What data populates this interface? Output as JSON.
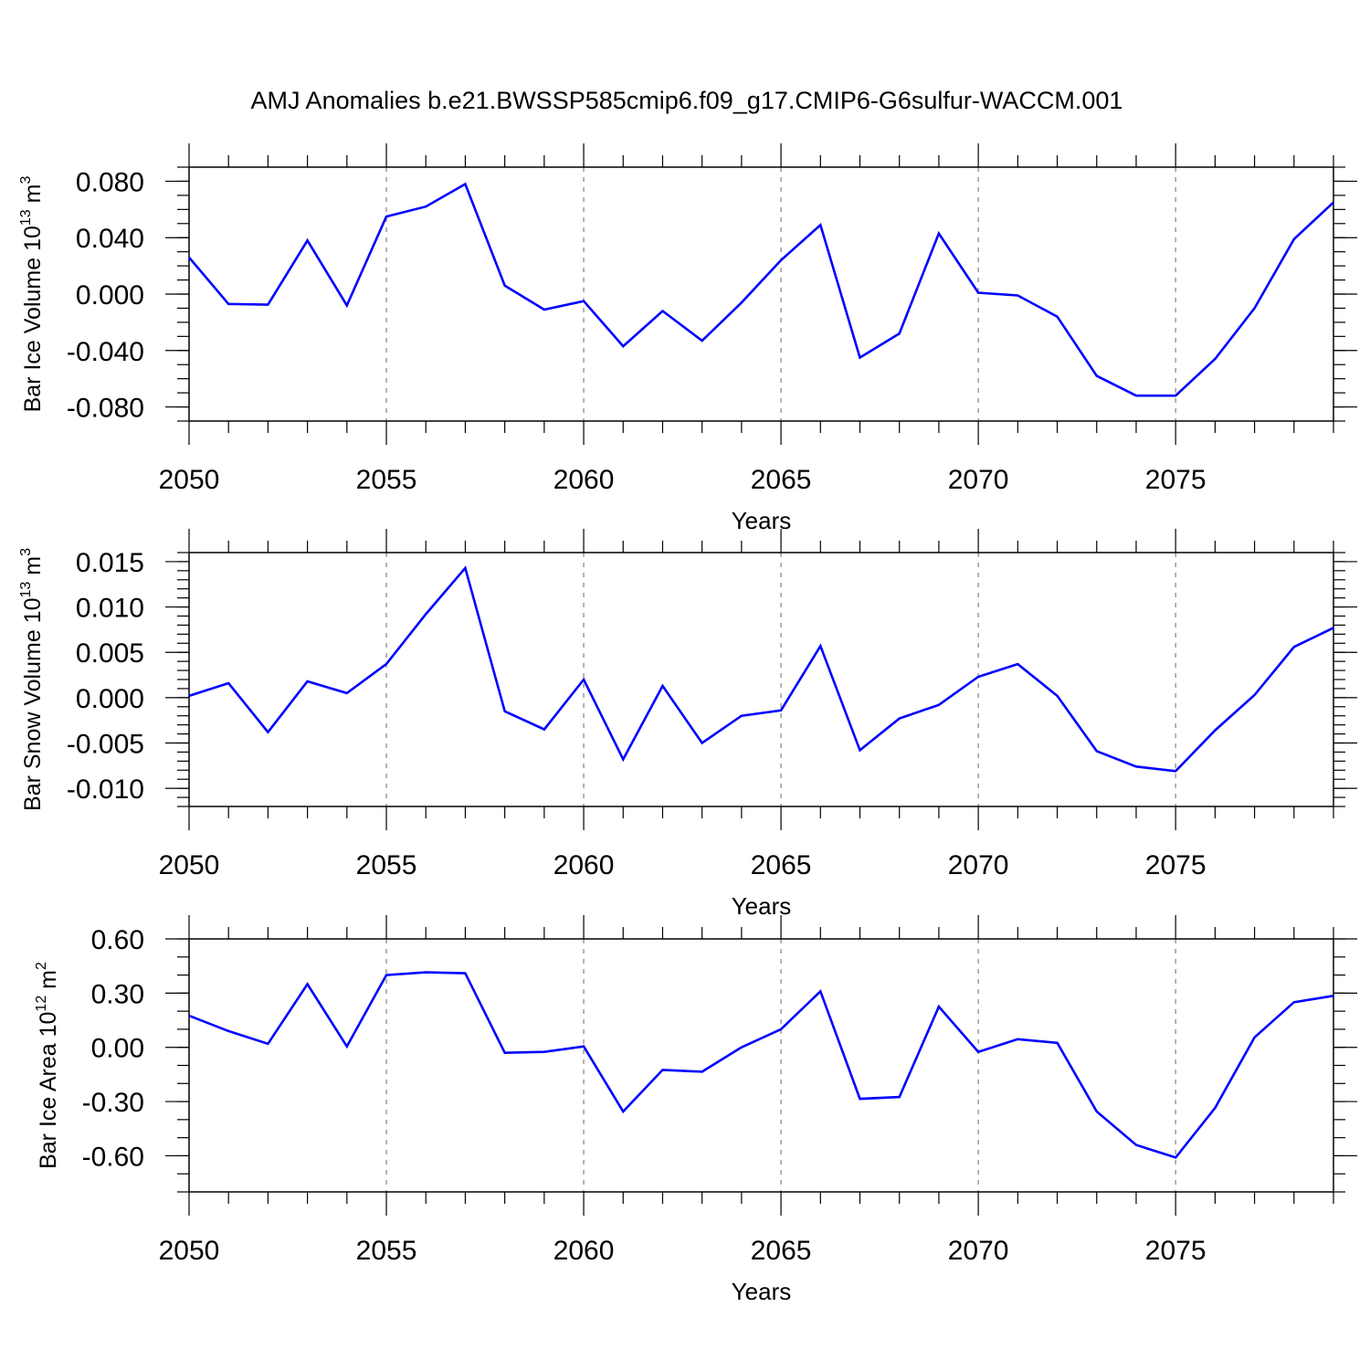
{
  "figure": {
    "title": "AMJ Anomalies b.e21.BWSSP585cmip6.f09_g17.CMIP6-G6sulfur-WACCM.001"
  },
  "colors": {
    "line": "#0000ff",
    "grid": "#8c8c8c",
    "axes": "#000000"
  },
  "chart_data": [
    {
      "type": "line",
      "ylabel": {
        "main": "Bar Ice Volume 10",
        "sup": "13",
        "tail": " m",
        "sup2": "3"
      },
      "xlabel": "Years",
      "xlim": [
        2050,
        2079
      ],
      "ylim": [
        -0.09,
        0.09
      ],
      "xticks": [
        2050,
        2055,
        2060,
        2065,
        2070,
        2075
      ],
      "xtick_labels": [
        "2050",
        "2055",
        "2060",
        "2065",
        "2070",
        "2075"
      ],
      "yticks": [
        -0.08,
        -0.04,
        0.0,
        0.04,
        0.08
      ],
      "ytick_labels": [
        "-0.080",
        "-0.040",
        "0.000",
        "0.040",
        "0.080"
      ],
      "yminor_step": 0.01,
      "grid": "vertical dashed at major x ticks",
      "series": [
        {
          "x": [
            2050,
            2051,
            2052,
            2053,
            2054,
            2055,
            2056,
            2057,
            2058,
            2059,
            2060,
            2061,
            2062,
            2063,
            2064,
            2065,
            2066,
            2067,
            2068,
            2069,
            2070,
            2071,
            2072,
            2073,
            2074,
            2075,
            2076,
            2077,
            2078,
            2079
          ],
          "values": [
            0.026,
            -0.007,
            -0.0075,
            0.038,
            -0.008,
            0.055,
            0.062,
            0.078,
            0.006,
            -0.011,
            -0.005,
            -0.037,
            -0.012,
            -0.033,
            -0.006,
            0.024,
            0.049,
            -0.045,
            -0.028,
            0.043,
            0.001,
            -0.001,
            -0.016,
            -0.058,
            -0.072,
            -0.072,
            -0.046,
            -0.01,
            0.039,
            0.065
          ]
        }
      ]
    },
    {
      "type": "line",
      "ylabel": {
        "main": "Bar Snow Volume 10",
        "sup": "13",
        "tail": " m",
        "sup2": "3"
      },
      "xlabel": "Years",
      "xlim": [
        2050,
        2079
      ],
      "ylim": [
        -0.012,
        0.016
      ],
      "xticks": [
        2050,
        2055,
        2060,
        2065,
        2070,
        2075
      ],
      "xtick_labels": [
        "2050",
        "2055",
        "2060",
        "2065",
        "2070",
        "2075"
      ],
      "yticks": [
        -0.01,
        -0.005,
        0.0,
        0.005,
        0.01,
        0.015
      ],
      "ytick_labels": [
        "-0.010",
        "-0.005",
        "0.000",
        "0.005",
        "0.010",
        "0.015"
      ],
      "yminor_step": 0.001,
      "grid": "vertical dashed at major x ticks",
      "series": [
        {
          "x": [
            2050,
            2051,
            2052,
            2053,
            2054,
            2055,
            2056,
            2057,
            2058,
            2059,
            2060,
            2061,
            2062,
            2063,
            2064,
            2065,
            2066,
            2067,
            2068,
            2069,
            2070,
            2071,
            2072,
            2073,
            2074,
            2075,
            2076,
            2077,
            2078,
            2079
          ],
          "values": [
            0.0002,
            0.0016,
            -0.0038,
            0.0018,
            0.0005,
            0.0037,
            0.0092,
            0.0143,
            -0.0015,
            -0.0035,
            0.002,
            -0.0068,
            0.0013,
            -0.005,
            -0.002,
            -0.0014,
            0.0057,
            -0.0058,
            -0.0023,
            -0.0008,
            0.0023,
            0.0037,
            0.0002,
            -0.0059,
            -0.0076,
            -0.0081,
            -0.0036,
            0.0003,
            0.0056,
            0.0077
          ]
        }
      ]
    },
    {
      "type": "line",
      "ylabel": {
        "main": "Bar Ice Area 10",
        "sup": "12",
        "tail": " m",
        "sup2": "2"
      },
      "xlabel": "Years",
      "xlim": [
        2050,
        2079
      ],
      "ylim": [
        -0.8,
        0.6
      ],
      "xticks": [
        2050,
        2055,
        2060,
        2065,
        2070,
        2075
      ],
      "xtick_labels": [
        "2050",
        "2055",
        "2060",
        "2065",
        "2070",
        "2075"
      ],
      "yticks": [
        -0.6,
        -0.3,
        0.0,
        0.3,
        0.6
      ],
      "ytick_labels": [
        "-0.60",
        "-0.30",
        "0.00",
        "0.30",
        "0.60"
      ],
      "yminor_step": 0.1,
      "grid": "vertical dashed at major x ticks",
      "series": [
        {
          "x": [
            2050,
            2051,
            2052,
            2053,
            2054,
            2055,
            2056,
            2057,
            2058,
            2059,
            2060,
            2061,
            2062,
            2063,
            2064,
            2065,
            2066,
            2067,
            2068,
            2069,
            2070,
            2071,
            2072,
            2073,
            2074,
            2075,
            2076,
            2077,
            2078,
            2079
          ],
          "values": [
            0.175,
            0.09,
            0.02,
            0.35,
            0.005,
            0.4,
            0.415,
            0.41,
            -0.03,
            -0.025,
            0.005,
            -0.355,
            -0.125,
            -0.135,
            0.0,
            0.1,
            0.31,
            -0.285,
            -0.275,
            0.225,
            -0.025,
            0.045,
            0.025,
            -0.355,
            -0.54,
            -0.61,
            -0.335,
            0.055,
            0.25,
            0.285
          ]
        }
      ]
    }
  ]
}
